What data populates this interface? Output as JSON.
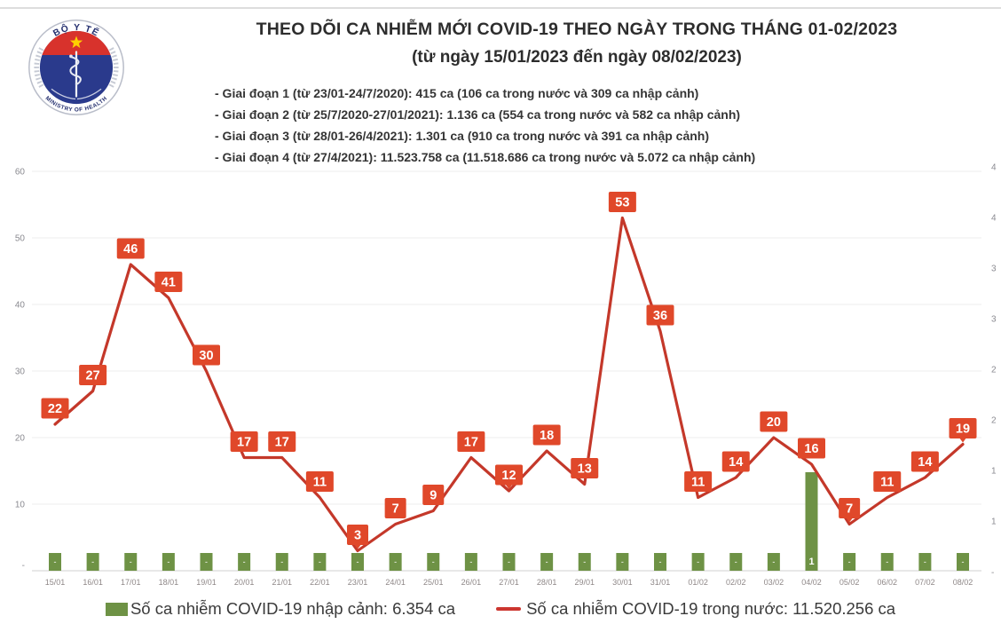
{
  "header": {
    "title": "THEO DÕI CA NHIỄM MỚI COVID-19 THEO NGÀY TRONG THÁNG 01-02/2023",
    "subtitle": "(từ ngày 15/01/2023 đến ngày 08/02/2023)",
    "phases": [
      "- Giai đoạn 1 (từ 23/01-24/7/2020): 415 ca (106 ca trong nước và 309 ca nhập cảnh)",
      "- Giai đoạn 2 (từ 25/7/2020-27/01/2021): 1.136 ca (554 ca trong nước và 582 ca nhập cảnh)",
      "- Giai đoạn 3 (từ 28/01-26/4/2021): 1.301 ca (910 ca trong nước và 391 ca nhập cảnh)",
      "- Giai đoạn 4 (từ 27/4/2021): 11.523.758 ca (11.518.686 ca trong nước và 5.072 ca nhập cảnh)"
    ]
  },
  "logo": {
    "top_text": "BỘ Y TẾ",
    "bottom_text": "MINISTRY OF HEALTH"
  },
  "chart_data": {
    "type": "line",
    "categories": [
      "15/01",
      "16/01",
      "17/01",
      "18/01",
      "19/01",
      "20/01",
      "21/01",
      "22/01",
      "23/01",
      "24/01",
      "25/01",
      "26/01",
      "27/01",
      "28/01",
      "29/01",
      "30/01",
      "31/01",
      "01/02",
      "02/02",
      "03/02",
      "04/02",
      "05/02",
      "06/02",
      "07/02",
      "08/02"
    ],
    "series": [
      {
        "name": "Số ca nhiễm COVID-19 trong nước",
        "type": "line",
        "color": "#c4382a",
        "point_label_box_color": "#e0482a",
        "values": [
          22,
          27,
          46,
          41,
          30,
          17,
          17,
          11,
          3,
          7,
          9,
          17,
          12,
          18,
          13,
          53,
          36,
          11,
          14,
          20,
          16,
          7,
          11,
          14,
          19
        ]
      },
      {
        "name": "Số ca nhiễm COVID-19 nhập cảnh",
        "type": "bar",
        "color": "#6e9245",
        "values": [
          0,
          0,
          0,
          0,
          0,
          0,
          0,
          0,
          0,
          0,
          0,
          0,
          0,
          0,
          0,
          0,
          0,
          0,
          0,
          0,
          1,
          0,
          0,
          0,
          0
        ],
        "bar_labels": [
          "-",
          "-",
          "-",
          "-",
          "-",
          "-",
          "-",
          "-",
          "-",
          "-",
          "-",
          "-",
          "-",
          "-",
          "-",
          "-",
          "-",
          "-",
          "-",
          "-",
          "1",
          "-",
          "-",
          "-",
          "-"
        ]
      }
    ],
    "left_axis": {
      "ticks": [
        60,
        50,
        40,
        30,
        20,
        10
      ],
      "zero_label": "-",
      "range": [
        0,
        60
      ],
      "grid": true
    },
    "right_axis": {
      "labels_top_to_bottom": [
        "4",
        "4",
        "3",
        "3",
        "2",
        "2",
        "1",
        "1"
      ],
      "zero_label": "-",
      "truncated_at_edge": true
    },
    "axis_text_color": "#8a8a90",
    "grid_color": "#ececec",
    "baseline_color": "#d9d9d9",
    "legend_position": "bottom"
  },
  "legend": {
    "bar_label": "Số ca nhiễm COVID-19 nhập cảnh: 6.354 ca",
    "line_label": "Số ca nhiễm COVID-19 trong nước: 11.520.256 ca"
  }
}
